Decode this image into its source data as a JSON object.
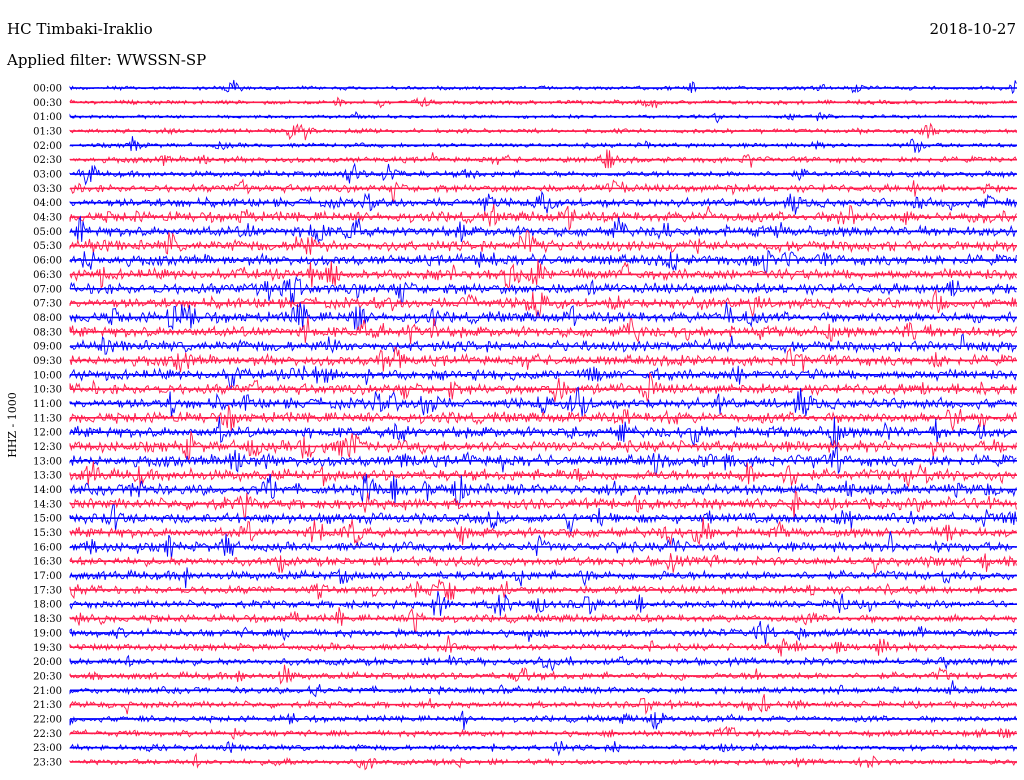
{
  "header": {
    "station": "HC Timbaki-Iraklio",
    "date": "2018-10-27",
    "filter": "Applied filter: WWSSN-SP"
  },
  "chart_data": {
    "type": "line",
    "title": "HC Timbaki-Iraklio",
    "ylabel": "HHZ - 1000",
    "colors": [
      "#0000ff",
      "#ff1a4b"
    ],
    "traces": [
      {
        "label": "00:00",
        "color": "#0000ff",
        "activity": 0.15
      },
      {
        "label": "00:30",
        "color": "#ff1a4b",
        "activity": 0.18
      },
      {
        "label": "01:00",
        "color": "#0000ff",
        "activity": 0.12
      },
      {
        "label": "01:30",
        "color": "#ff1a4b",
        "activity": 0.2
      },
      {
        "label": "02:00",
        "color": "#0000ff",
        "activity": 0.22
      },
      {
        "label": "02:30",
        "color": "#ff1a4b",
        "activity": 0.35
      },
      {
        "label": "03:00",
        "color": "#0000ff",
        "activity": 0.4
      },
      {
        "label": "03:30",
        "color": "#ff1a4b",
        "activity": 0.55
      },
      {
        "label": "04:00",
        "color": "#0000ff",
        "activity": 0.7
      },
      {
        "label": "04:30",
        "color": "#ff1a4b",
        "activity": 0.85
      },
      {
        "label": "05:00",
        "color": "#0000ff",
        "activity": 0.85
      },
      {
        "label": "05:30",
        "color": "#ff1a4b",
        "activity": 0.85
      },
      {
        "label": "06:00",
        "color": "#0000ff",
        "activity": 0.85
      },
      {
        "label": "06:30",
        "color": "#ff1a4b",
        "activity": 0.9
      },
      {
        "label": "07:00",
        "color": "#0000ff",
        "activity": 0.9
      },
      {
        "label": "07:30",
        "color": "#ff1a4b",
        "activity": 0.9
      },
      {
        "label": "08:00",
        "color": "#0000ff",
        "activity": 0.9
      },
      {
        "label": "08:30",
        "color": "#ff1a4b",
        "activity": 0.9
      },
      {
        "label": "09:00",
        "color": "#0000ff",
        "activity": 0.9
      },
      {
        "label": "09:30",
        "color": "#ff1a4b",
        "activity": 0.85
      },
      {
        "label": "10:00",
        "color": "#0000ff",
        "activity": 0.85
      },
      {
        "label": "10:30",
        "color": "#ff1a4b",
        "activity": 0.85
      },
      {
        "label": "11:00",
        "color": "#0000ff",
        "activity": 0.9
      },
      {
        "label": "11:30",
        "color": "#ff1a4b",
        "activity": 0.9
      },
      {
        "label": "12:00",
        "color": "#0000ff",
        "activity": 0.9
      },
      {
        "label": "12:30",
        "color": "#ff1a4b",
        "activity": 0.95
      },
      {
        "label": "13:00",
        "color": "#0000ff",
        "activity": 0.95
      },
      {
        "label": "13:30",
        "color": "#ff1a4b",
        "activity": 0.95
      },
      {
        "label": "14:00",
        "color": "#0000ff",
        "activity": 0.9
      },
      {
        "label": "14:30",
        "color": "#ff1a4b",
        "activity": 0.9
      },
      {
        "label": "15:00",
        "color": "#0000ff",
        "activity": 0.85
      },
      {
        "label": "15:30",
        "color": "#ff1a4b",
        "activity": 0.8
      },
      {
        "label": "16:00",
        "color": "#0000ff",
        "activity": 0.75
      },
      {
        "label": "16:30",
        "color": "#ff1a4b",
        "activity": 0.7
      },
      {
        "label": "17:00",
        "color": "#0000ff",
        "activity": 0.7
      },
      {
        "label": "17:30",
        "color": "#ff1a4b",
        "activity": 0.6
      },
      {
        "label": "18:00",
        "color": "#0000ff",
        "activity": 0.55
      },
      {
        "label": "18:30",
        "color": "#ff1a4b",
        "activity": 0.55
      },
      {
        "label": "19:00",
        "color": "#0000ff",
        "activity": 0.55
      },
      {
        "label": "19:30",
        "color": "#ff1a4b",
        "activity": 0.5
      },
      {
        "label": "20:00",
        "color": "#0000ff",
        "activity": 0.5
      },
      {
        "label": "20:30",
        "color": "#ff1a4b",
        "activity": 0.5
      },
      {
        "label": "21:00",
        "color": "#0000ff",
        "activity": 0.45
      },
      {
        "label": "21:30",
        "color": "#ff1a4b",
        "activity": 0.45
      },
      {
        "label": "22:00",
        "color": "#0000ff",
        "activity": 0.4
      },
      {
        "label": "22:30",
        "color": "#ff1a4b",
        "activity": 0.4
      },
      {
        "label": "23:00",
        "color": "#0000ff",
        "activity": 0.35
      },
      {
        "label": "23:30",
        "color": "#ff1a4b",
        "activity": 0.35
      }
    ]
  }
}
